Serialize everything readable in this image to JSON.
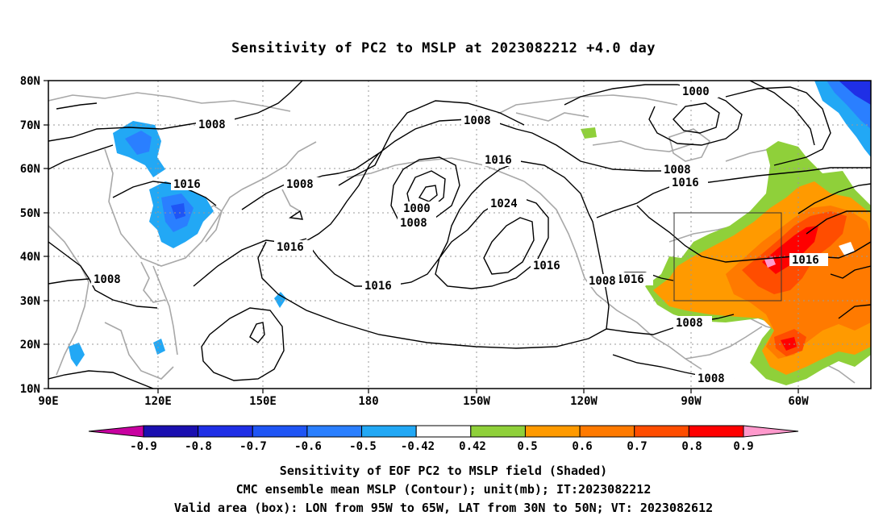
{
  "title": "Sensitivity of PC2 to MSLP at 2023082212 +4.0 day",
  "lat_labels": [
    "80N",
    "70N",
    "60N",
    "50N",
    "40N",
    "30N",
    "20N",
    "10N"
  ],
  "lon_labels": [
    "90E",
    "120E",
    "150E",
    "180",
    "150W",
    "120W",
    "90W",
    "60W"
  ],
  "contour_labels": [
    "1008",
    "1016",
    "1008",
    "1008",
    "1008",
    "1016",
    "1016",
    "1000",
    "1008",
    "1016",
    "1024",
    "1016",
    "1000",
    "1008",
    "1016",
    "1016",
    "1008",
    "1008",
    "1008",
    "1016"
  ],
  "colorbar": {
    "labels": [
      "-0.9",
      "-0.8",
      "-0.7",
      "-0.6",
      "-0.5",
      "-0.42",
      "0.42",
      "0.5",
      "0.6",
      "0.7",
      "0.8",
      "0.9"
    ],
    "colors": [
      "#1a0fb0",
      "#1f2fe6",
      "#1f55f5",
      "#2a7fff",
      "#22a8f5",
      "#ffffff",
      "#8fd03a",
      "#ff9a00",
      "#ff7a00",
      "#ff4d00",
      "#ff0000"
    ],
    "low_extend_color": "#c800a0",
    "high_extend_color": "#ff99cc"
  },
  "captions": {
    "line1": "Sensitivity of EOF PC2 to MSLP field (Shaded)",
    "line2": "CMC ensemble mean MSLP (Contour); unit(mb); IT:2023082212",
    "line3": "Valid area (box): LON from 95W to 65W, LAT from 30N to 50N; VT: 2023082612"
  }
}
